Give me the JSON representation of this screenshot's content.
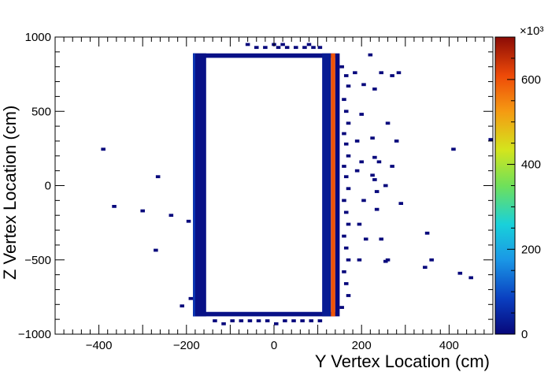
{
  "chart_data": {
    "type": "heatmap",
    "title": "",
    "xlabel": "Y Vertex Location (cm)",
    "ylabel": "Z Vertex Location (cm)",
    "xlim": [
      -500,
      500
    ],
    "ylim": [
      -1000,
      1000
    ],
    "x_ticks": [
      -400,
      -200,
      0,
      200,
      400
    ],
    "y_ticks": [
      -1000,
      -500,
      0,
      500,
      1000
    ],
    "colorbar": {
      "range": [
        0,
        700
      ],
      "multiplier_label": "×10³",
      "ticks": [
        0,
        200,
        400,
        600
      ]
    },
    "bin_width": [
      10,
      20
    ],
    "cells": [
      {
        "x0": -185,
        "x1": 140,
        "y0": 860,
        "y1": 890,
        "value": 15
      },
      {
        "x0": -185,
        "x1": 140,
        "y0": -880,
        "y1": -850,
        "value": 15
      },
      {
        "x0": -185,
        "x1": -155,
        "y0": -880,
        "y1": 890,
        "value": 15
      },
      {
        "x0": 110,
        "x1": 130,
        "y0": -880,
        "y1": 890,
        "value": 30
      },
      {
        "x0": 130,
        "x1": 140,
        "y0": -880,
        "y1": 890,
        "value": 600
      },
      {
        "x0": -185,
        "x1": -180,
        "y0": -880,
        "y1": 890,
        "value": 70
      },
      {
        "x0": 140,
        "x1": 150,
        "y0": -880,
        "y1": 890,
        "value": 3
      }
    ],
    "scatter_bins": [
      [
        -395,
        245
      ],
      [
        -270,
        60
      ],
      [
        -370,
        -140
      ],
      [
        -305,
        -170
      ],
      [
        -240,
        -200
      ],
      [
        -200,
        -240
      ],
      [
        -275,
        -435
      ],
      [
        -215,
        -810
      ],
      [
        -195,
        -760
      ],
      [
        -65,
        950
      ],
      [
        -45,
        930
      ],
      [
        -25,
        930
      ],
      [
        -5,
        950
      ],
      [
        5,
        930
      ],
      [
        15,
        950
      ],
      [
        25,
        930
      ],
      [
        45,
        930
      ],
      [
        65,
        930
      ],
      [
        75,
        950
      ],
      [
        85,
        930
      ],
      [
        100,
        930
      ],
      [
        -140,
        -910
      ],
      [
        -120,
        -930
      ],
      [
        -100,
        -910
      ],
      [
        -80,
        -910
      ],
      [
        -60,
        -910
      ],
      [
        -40,
        -910
      ],
      [
        -20,
        -910
      ],
      [
        0,
        -930
      ],
      [
        20,
        -910
      ],
      [
        40,
        -910
      ],
      [
        60,
        -910
      ],
      [
        80,
        -910
      ],
      [
        100,
        -910
      ],
      [
        150,
        800
      ],
      [
        160,
        740
      ],
      [
        165,
        670
      ],
      [
        155,
        580
      ],
      [
        160,
        500
      ],
      [
        165,
        420
      ],
      [
        155,
        350
      ],
      [
        160,
        280
      ],
      [
        165,
        200
      ],
      [
        155,
        130
      ],
      [
        160,
        60
      ],
      [
        165,
        -20
      ],
      [
        155,
        -100
      ],
      [
        160,
        -180
      ],
      [
        165,
        -260
      ],
      [
        155,
        -340
      ],
      [
        160,
        -420
      ],
      [
        165,
        -500
      ],
      [
        155,
        -580
      ],
      [
        160,
        -660
      ],
      [
        165,
        -740
      ],
      [
        150,
        -820
      ],
      [
        180,
        760
      ],
      [
        200,
        680
      ],
      [
        195,
        480
      ],
      [
        185,
        300
      ],
      [
        195,
        160
      ],
      [
        185,
        100
      ],
      [
        200,
        -100
      ],
      [
        190,
        -260
      ],
      [
        205,
        -360
      ],
      [
        190,
        -500
      ],
      [
        215,
        880
      ],
      [
        240,
        760
      ],
      [
        225,
        650
      ],
      [
        255,
        420
      ],
      [
        220,
        320
      ],
      [
        235,
        160
      ],
      [
        225,
        40
      ],
      [
        250,
        0
      ],
      [
        230,
        -40
      ],
      [
        275,
        300
      ],
      [
        265,
        130
      ],
      [
        225,
        190
      ],
      [
        220,
        70
      ],
      [
        240,
        -360
      ],
      [
        255,
        -500
      ],
      [
        230,
        -160
      ],
      [
        280,
        760
      ],
      [
        265,
        740
      ],
      [
        285,
        -120
      ],
      [
        250,
        -510
      ],
      [
        345,
        -320
      ],
      [
        355,
        -500
      ],
      [
        340,
        -550
      ],
      [
        420,
        -590
      ],
      [
        445,
        -620
      ],
      [
        405,
        245
      ],
      [
        490,
        310
      ]
    ]
  }
}
